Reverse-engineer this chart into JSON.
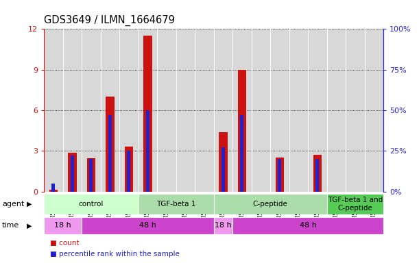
{
  "title": "GDS3649 / ILMN_1664679",
  "samples": [
    "GSM507417",
    "GSM507418",
    "GSM507419",
    "GSM507414",
    "GSM507415",
    "GSM507416",
    "GSM507420",
    "GSM507421",
    "GSM507422",
    "GSM507426",
    "GSM507427",
    "GSM507428",
    "GSM507423",
    "GSM507424",
    "GSM507425",
    "GSM507429",
    "GSM507430",
    "GSM507431"
  ],
  "count_values": [
    0.15,
    2.85,
    2.45,
    7.0,
    3.3,
    11.5,
    0,
    0,
    0,
    4.4,
    9.0,
    0,
    2.5,
    0,
    2.7,
    0,
    0,
    0
  ],
  "percentile_values": [
    5.0,
    22.0,
    20.0,
    47.0,
    25.0,
    50.0,
    0,
    0,
    0,
    27.0,
    47.0,
    0,
    20.0,
    0,
    20.0,
    0,
    0,
    0
  ],
  "bar_color_red": "#cc1111",
  "bar_color_blue": "#2222cc",
  "ylim_left": [
    0,
    12
  ],
  "ylim_right": [
    0,
    100
  ],
  "yticks_left": [
    0,
    3,
    6,
    9,
    12
  ],
  "yticks_right": [
    0,
    25,
    50,
    75,
    100
  ],
  "ytick_labels_left": [
    "0",
    "3",
    "6",
    "9",
    "12"
  ],
  "ytick_labels_right": [
    "0%",
    "25%",
    "50%",
    "75%",
    "100%"
  ],
  "axis_color_left": "#cc1111",
  "axis_color_right": "#2222cc",
  "grid_color": "#888888",
  "plot_bg_color": "#d8d8d8",
  "agent_groups": [
    {
      "label": "control",
      "start": 0,
      "end": 5,
      "color": "#ccffcc"
    },
    {
      "label": "TGF-beta 1",
      "start": 5,
      "end": 9,
      "color": "#aaddaa"
    },
    {
      "label": "C-peptide",
      "start": 9,
      "end": 15,
      "color": "#aaddaa"
    },
    {
      "label": "TGF-beta 1 and\nC-peptide",
      "start": 15,
      "end": 18,
      "color": "#55cc55"
    }
  ],
  "time_groups": [
    {
      "label": "18 h",
      "start": 0,
      "end": 2,
      "color": "#ee99ee"
    },
    {
      "label": "48 h",
      "start": 2,
      "end": 9,
      "color": "#cc44cc"
    },
    {
      "label": "18 h",
      "start": 9,
      "end": 10,
      "color": "#ee99ee"
    },
    {
      "label": "48 h",
      "start": 10,
      "end": 18,
      "color": "#cc44cc"
    }
  ],
  "legend_items": [
    {
      "label": "count",
      "color": "#cc1111"
    },
    {
      "label": "percentile rank within the sample",
      "color": "#2222cc"
    }
  ]
}
